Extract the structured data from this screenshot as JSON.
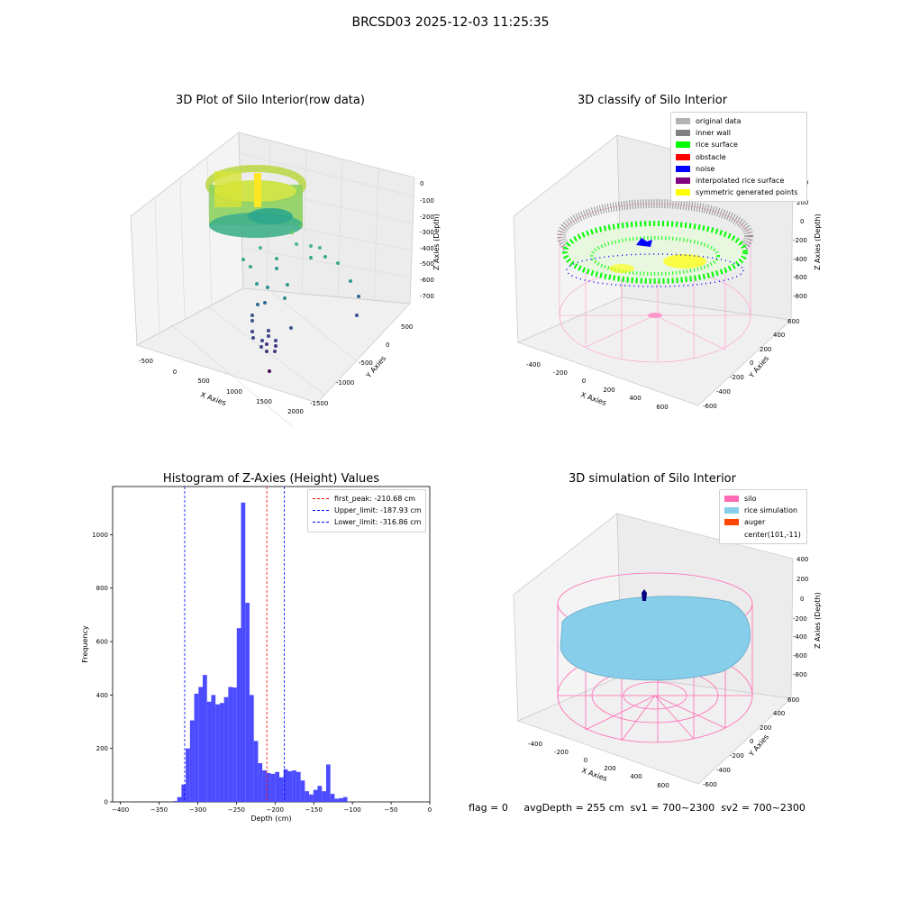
{
  "suptitle": "BRCSD03 2025-12-03 11:25:35",
  "status_line": "flag = 0     avgDepth = 255 cm  sv1 = 700~2300  sv2 = 700~2300",
  "panels": {
    "raw": {
      "title": "3D Plot of Silo Interior(row data)",
      "xlabel": "X Axies",
      "ylabel": "Y Axies",
      "zlabel": "Z Axies (Depth)",
      "xticks": [
        "-500",
        "0",
        "500",
        "1000",
        "1500",
        "2000"
      ],
      "yticks": [
        "500",
        "0",
        "-500",
        "-1000",
        "-1500"
      ],
      "zticks": [
        "0",
        "-100",
        "-200",
        "-300",
        "-400",
        "-500",
        "-600",
        "-700"
      ]
    },
    "classify": {
      "title": "3D classify of Silo Interior",
      "xlabel": "X Axies",
      "ylabel": "Y Axies",
      "zlabel": "Z Axies (Depth)",
      "xticks": [
        "-400",
        "-200",
        "0",
        "200",
        "400",
        "600"
      ],
      "yticks": [
        "600",
        "400",
        "200",
        "0",
        "-200",
        "-400",
        "-600"
      ],
      "zticks": [
        "400",
        "200",
        "0",
        "-200",
        "-400",
        "-600",
        "-800"
      ],
      "legend": [
        {
          "label": "original data",
          "color": "#b3b3b3"
        },
        {
          "label": "inner wall",
          "color": "#808080"
        },
        {
          "label": "rice surface",
          "color": "#00ff00"
        },
        {
          "label": "obstacle",
          "color": "#ff0000"
        },
        {
          "label": "noise",
          "color": "#0000ff"
        },
        {
          "label": "interpolated rice surface",
          "color": "#800080"
        },
        {
          "label": "symmetric generated points",
          "color": "#ffff00"
        }
      ]
    },
    "histogram": {
      "title": "Histogram of Z-Axies (Height) Values",
      "xlabel": "Depth (cm)",
      "ylabel": "Frequency",
      "legend": [
        {
          "label": "first_peak: -210.68 cm",
          "color": "#ff0000"
        },
        {
          "label": "Upper_limit: -187.93 cm",
          "color": "#0000ff"
        },
        {
          "label": "Lower_limit: -316.86 cm",
          "color": "#0000ff"
        }
      ]
    },
    "simulation": {
      "title": "3D simulation of Silo Interior",
      "xlabel": "X Axies",
      "ylabel": "Y Axies",
      "zlabel": "Z Axies (Depth)",
      "xticks": [
        "-400",
        "-200",
        "0",
        "200",
        "400",
        "600"
      ],
      "yticks": [
        "600",
        "400",
        "200",
        "0",
        "-200",
        "-400",
        "-600"
      ],
      "zticks": [
        "400",
        "200",
        "0",
        "-200",
        "-400",
        "-600",
        "-800"
      ],
      "legend": [
        {
          "label": "silo",
          "color": "#ff69b4"
        },
        {
          "label": "rice simulation",
          "color": "#87ceeb"
        },
        {
          "label": "auger",
          "color": "#ff4500"
        },
        {
          "label": "center(101,-11)",
          "color": "#ffffff"
        }
      ]
    }
  },
  "chart_data": {
    "type": "bar",
    "title": "Histogram of Z-Axies (Height) Values",
    "xlabel": "Depth (cm)",
    "ylabel": "Frequency",
    "xlim": [
      -410,
      0
    ],
    "ylim": [
      0,
      1180
    ],
    "xticks": [
      -400,
      -350,
      -300,
      -250,
      -200,
      -150,
      -100,
      -50,
      0
    ],
    "yticks": [
      0,
      200,
      400,
      600,
      800,
      1000
    ],
    "bin_width": 5.5,
    "bin_start": -332,
    "values": [
      3,
      18,
      65,
      200,
      305,
      405,
      430,
      475,
      375,
      400,
      365,
      370,
      392,
      430,
      428,
      650,
      1120,
      745,
      400,
      228,
      145,
      118,
      108,
      105,
      112,
      92,
      122,
      115,
      118,
      112,
      80,
      40,
      28,
      45,
      60,
      40,
      140,
      30,
      12,
      14,
      18
    ],
    "vlines": [
      {
        "x": -210.68,
        "label": "first_peak: -210.68 cm",
        "color": "#ff0000"
      },
      {
        "x": -187.93,
        "label": "Upper_limit: -187.93 cm",
        "color": "#0000ff"
      },
      {
        "x": -316.86,
        "label": "Lower_limit: -316.86 cm",
        "color": "#0000ff"
      }
    ],
    "bar_color": "#4b4bff",
    "legend_position": "top-right"
  }
}
